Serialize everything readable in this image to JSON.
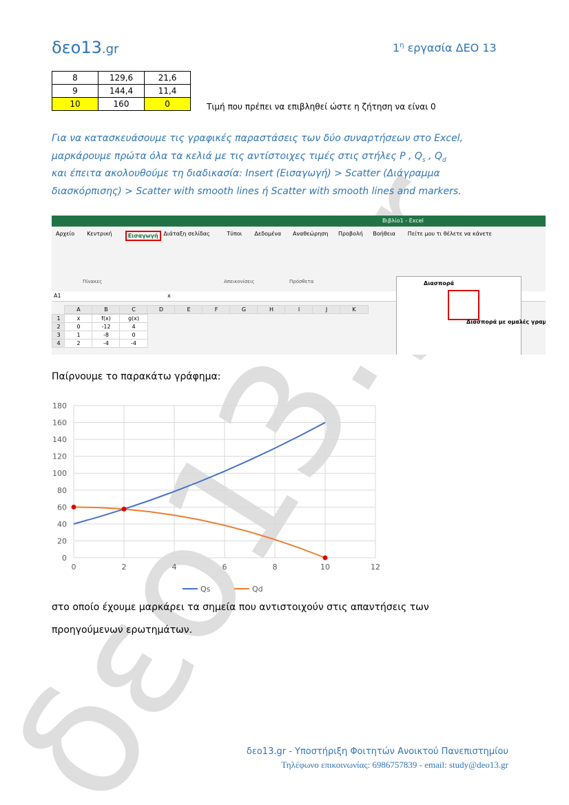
{
  "header": {
    "logo_main": "δεο13",
    "logo_suffix": ".gr",
    "assignment_num": "1",
    "assignment_sup": "η",
    "assignment_rest": " εργασία  ΔΕΟ 13"
  },
  "table": {
    "rows": [
      [
        "8",
        "129,6",
        "21,6"
      ],
      [
        "9",
        "144,4",
        "11,4"
      ],
      [
        "10",
        "160",
        "0"
      ]
    ],
    "note": "Τιμή που πρέπει να επιβληθεί ώστε η ζήτηση να είναι 0"
  },
  "instructions": {
    "line1": "Για να κατασκευάσουμε τις γραφικές παραστάσεις των δύο συναρτήσεων στο Excel,",
    "line2a": "μαρκάρουμε πρώτα όλα τα κελιά με τις αντίστοιχες τιμές στις στήλες  P , Q",
    "line2b": "s",
    "line2c": " , Q",
    "line2d": "d",
    "line3": "και έπειτα ακολουθούμε τη διαδικασία: Insert (Εισαγωγή) > Scatter (Διάγραμμα",
    "line4": "διασκόρπισης) > Scatter with smooth lines ή  Scatter with smooth lines and markers."
  },
  "excel": {
    "title": "Βιβλίο1 - Excel",
    "tabs": [
      "Αρχείο",
      "Κεντρική",
      "Εισαγωγή",
      "Διάταξη σελίδας",
      "Τύποι",
      "Δεδομένα",
      "Αναθεώρηση",
      "Προβολή",
      "Βοήθεια",
      "Πείτε μου τι θέλετε να κάνετε"
    ],
    "groups": [
      "Πίνακες",
      "Απεικονίσεις",
      "Πρόσθετα"
    ],
    "name_box": "A1",
    "formula": "x",
    "columns": [
      "A",
      "B",
      "C",
      "D",
      "E",
      "F",
      "G",
      "H",
      "I",
      "J",
      "K"
    ],
    "rows": [
      [
        "1",
        "x",
        "f(x)",
        "g(x)"
      ],
      [
        "2",
        "0",
        "-12",
        "4"
      ],
      [
        "3",
        "1",
        "-8",
        "0"
      ],
      [
        "4",
        "2",
        "-4",
        "-4"
      ]
    ],
    "dropdown_title": "Διασπορά",
    "tooltip": "Διασπορά με ομαλές γραμμές"
  },
  "intro": "Παίρνουμε το παρακάτω γράφημα:",
  "chart_data": {
    "type": "line",
    "x": [
      0,
      1,
      2,
      3,
      4,
      5,
      6,
      7,
      8,
      9,
      10
    ],
    "series": [
      {
        "name": "Qs",
        "color": "#4472c4",
        "values": [
          40,
          48.4,
          57.6,
          67.6,
          78.4,
          90,
          102.4,
          115.6,
          129.6,
          144.4,
          160
        ]
      },
      {
        "name": "Qd",
        "color": "#ed7d31",
        "values": [
          60,
          59.4,
          57.6,
          54.6,
          50.4,
          45,
          38.4,
          30.6,
          21.6,
          11.4,
          0
        ]
      }
    ],
    "highlight_points": {
      "x": [
        0,
        2,
        10
      ],
      "y": [
        60,
        57.6,
        0
      ],
      "color": "#e00000"
    },
    "xlim": [
      0,
      12
    ],
    "xticks": [
      0,
      2,
      4,
      6,
      8,
      10,
      12
    ],
    "ylim": [
      0,
      180
    ],
    "yticks": [
      0,
      20,
      40,
      60,
      80,
      100,
      120,
      140,
      160,
      180
    ],
    "grid": true,
    "legend": "bottom"
  },
  "conclusion": {
    "line1": "στο οποίο έχουμε μαρκάρει τα σημεία που αντιστοιχούν στις απαντήσεις των",
    "line2": "προηγούμενων ερωτημάτων."
  },
  "watermark": "δεο13.gr",
  "footer": {
    "line1": "δεο13.gr - Υποστήριξη Φοιτητών Ανοικτού Πανεπιστημίου",
    "line2": "Τηλέφωνο επικοινωνίας: 6986757839 - email: study@deo13.gr"
  }
}
